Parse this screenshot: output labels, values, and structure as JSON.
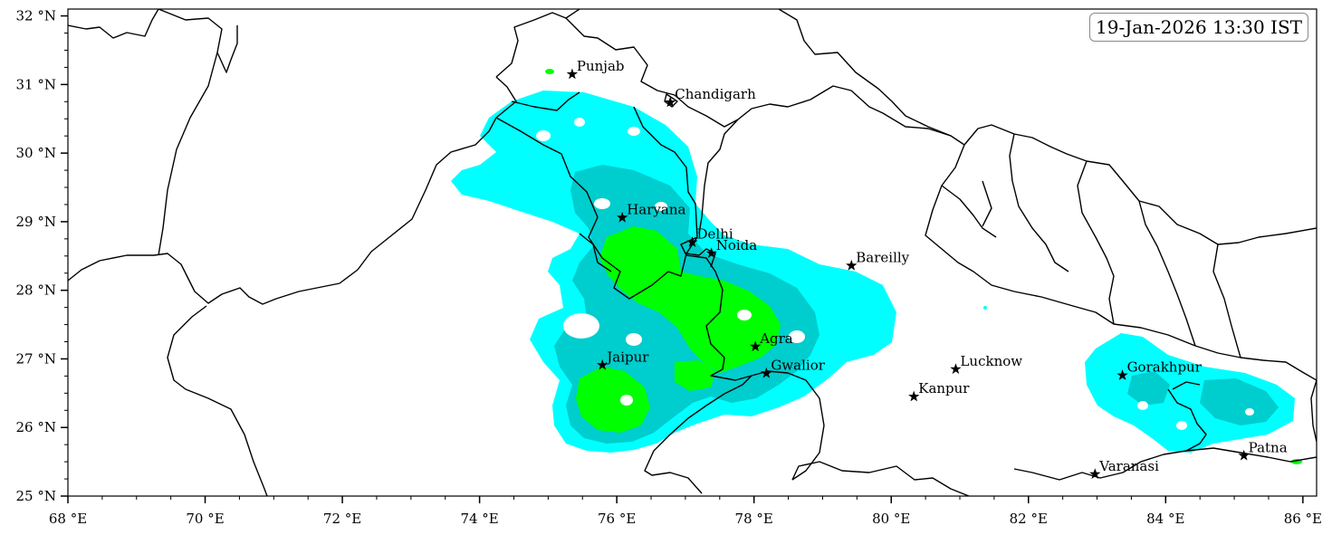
{
  "timestamp": "19-Jan-2026 13:30 IST",
  "axes": {
    "x_ticks": [
      "68 °E",
      "70 °E",
      "72 °E",
      "74 °E",
      "76 °E",
      "78 °E",
      "80 °E",
      "82 °E",
      "84 °E",
      "86 °E"
    ],
    "y_ticks": [
      "32 °N",
      "31 °N",
      "30 °N",
      "29 °N",
      "28 °N",
      "27 °N",
      "26 °N",
      "25 °N"
    ],
    "lon_range": [
      68,
      86.2
    ],
    "lat_range": [
      25,
      32.1
    ]
  },
  "cities": [
    {
      "name": "Punjab",
      "lon": 75.35,
      "lat": 31.15
    },
    {
      "name": "Chandigarh",
      "lon": 76.78,
      "lat": 30.74
    },
    {
      "name": "Haryana",
      "lon": 76.08,
      "lat": 29.06
    },
    {
      "name": "Delhi",
      "lon": 77.1,
      "lat": 28.7
    },
    {
      "name": "Noida",
      "lon": 77.38,
      "lat": 28.54
    },
    {
      "name": "Bareilly",
      "lon": 79.42,
      "lat": 28.36
    },
    {
      "name": "Agra",
      "lon": 78.02,
      "lat": 27.18
    },
    {
      "name": "Jaipur",
      "lon": 75.79,
      "lat": 26.91
    },
    {
      "name": "Gwalior",
      "lon": 78.18,
      "lat": 26.79
    },
    {
      "name": "Lucknow",
      "lon": 80.94,
      "lat": 26.85
    },
    {
      "name": "Kanpur",
      "lon": 80.33,
      "lat": 26.45
    },
    {
      "name": "Gorakhpur",
      "lon": 83.37,
      "lat": 26.76
    },
    {
      "name": "Varanasi",
      "lon": 82.97,
      "lat": 25.32
    },
    {
      "name": "Patna",
      "lon": 85.14,
      "lat": 25.59
    }
  ],
  "colors": {
    "light_precip": "#00ffff",
    "moderate_precip": "#00cdcd",
    "heavy_precip": "#00ff00",
    "boundaries": "#000000"
  }
}
